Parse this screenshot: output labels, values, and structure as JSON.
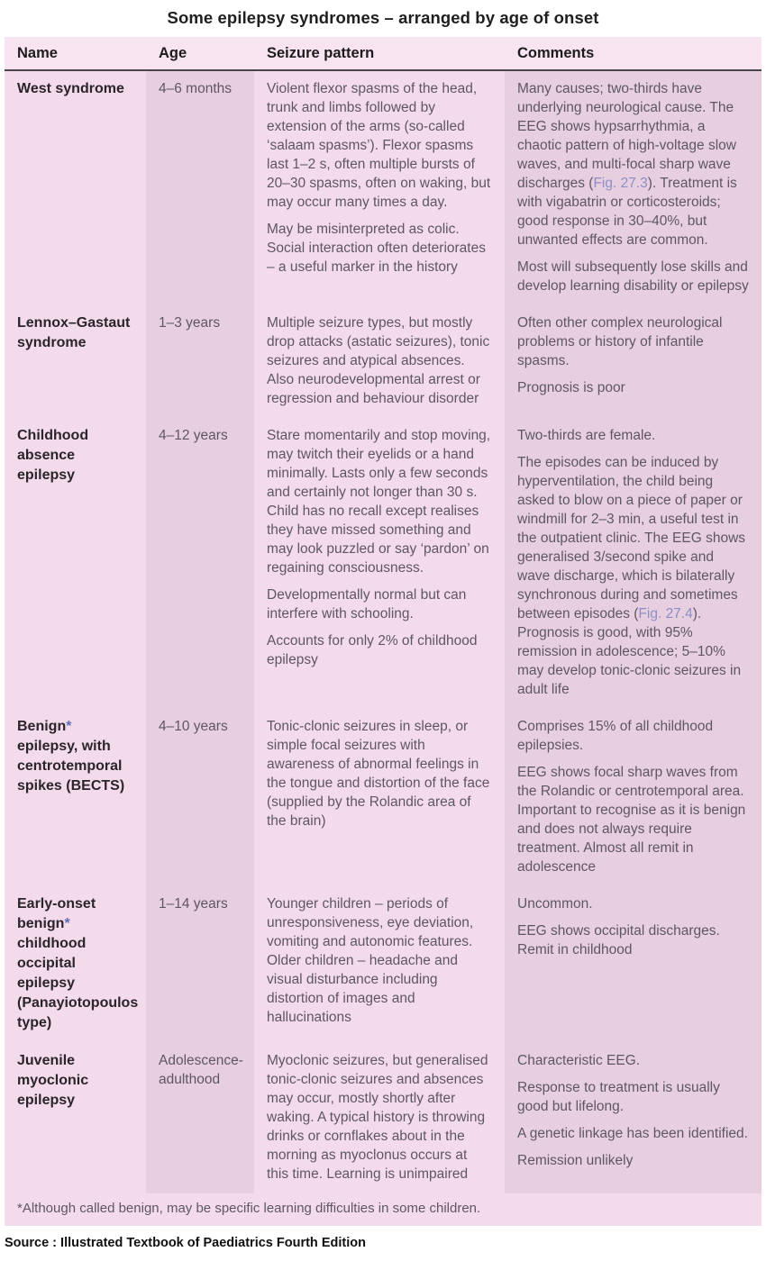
{
  "title": "Some epilepsy syndromes – arranged by age of onset",
  "colors": {
    "light_cell": "#f4dbeb",
    "dark_cell": "#e8cfe0",
    "header_bg": "#f8e3f1",
    "figure_reference": "#8d8ec6",
    "asterisk": "#5d6db6"
  },
  "table": {
    "headers": [
      "Name",
      "Age",
      "Seizure pattern",
      "Comments"
    ],
    "rows": [
      {
        "name": [
          {
            "t": "West syndrome"
          }
        ],
        "age": "4–6 months",
        "seizure": [
          [
            {
              "t": "Violent flexor spasms of the head, trunk and limbs followed by extension of the arms (so-called ‘salaam spasms’). Flexor spasms last 1–2 s, often multiple bursts of 20–30 spasms, often on waking, but may occur many times a day."
            }
          ],
          [
            {
              "t": "May be misinterpreted as colic. Social interaction often deteriorates – a useful marker in the history"
            }
          ]
        ],
        "comments": [
          [
            {
              "t": "Many causes; two-thirds have underlying neurological cause. The EEG shows hypsarrhythmia, a chaotic pattern of high-voltage slow waves, and multi-focal sharp wave discharges ("
            },
            {
              "t": "Fig. 27.3",
              "s": "fig"
            },
            {
              "t": "). Treatment is with vigabatrin or corticosteroids; good response in 30–40%, but unwanted effects are common."
            }
          ],
          [
            {
              "t": "Most will subsequently lose skills and develop learning disability or epilepsy"
            }
          ]
        ]
      },
      {
        "name": [
          {
            "t": "Lennox–Gastaut syndrome"
          }
        ],
        "age": "1–3 years",
        "seizure": [
          [
            {
              "t": "Multiple seizure types, but mostly drop attacks (astatic seizures), tonic seizures and atypical absences. Also neurodevelopmental arrest or regression and behaviour disorder"
            }
          ]
        ],
        "comments": [
          [
            {
              "t": "Often other complex neurological problems or history of infantile spasms."
            }
          ],
          [
            {
              "t": "Prognosis is poor"
            }
          ]
        ]
      },
      {
        "name": [
          {
            "t": "Childhood absence epilepsy"
          }
        ],
        "age": "4–12 years",
        "seizure": [
          [
            {
              "t": "Stare momentarily and stop moving, may twitch their eyelids or a hand minimally. Lasts only a few seconds and certainly not longer than 30 s. Child has no recall except realises they have missed something and may look puzzled or say ‘pardon’ on regaining consciousness."
            }
          ],
          [
            {
              "t": "Developmentally normal but can interfere with schooling."
            }
          ],
          [
            {
              "t": "Accounts for only 2% of childhood epilepsy"
            }
          ]
        ],
        "comments": [
          [
            {
              "t": "Two-thirds are female."
            }
          ],
          [
            {
              "t": "The episodes can be induced by hyperventilation, the child being asked to blow on a piece of paper or windmill for 2–3 min, a useful test in the outpatient clinic. The EEG shows generalised 3/second spike and wave discharge, which is bilaterally synchronous during and sometimes between episodes ("
            },
            {
              "t": "Fig. 27.4",
              "s": "fig"
            },
            {
              "t": "). Prognosis is good, with 95% remission in adolescence; 5–10% may develop tonic-clonic seizures in adult life"
            }
          ]
        ]
      },
      {
        "name": [
          {
            "t": "Benign"
          },
          {
            "t": "*",
            "s": "asterisk"
          },
          {
            "t": " epilepsy, with centrotemporal spikes (BECTS)"
          }
        ],
        "age": "4–10 years",
        "seizure": [
          [
            {
              "t": "Tonic-clonic seizures in sleep, or simple focal seizures with awareness of abnormal feelings in the tongue and distortion of the face (supplied by the Rolandic area of the brain)"
            }
          ]
        ],
        "comments": [
          [
            {
              "t": "Comprises 15% of all childhood epilepsies."
            }
          ],
          [
            {
              "t": "EEG shows focal sharp waves from the Rolandic or centrotemporal area. Important to recognise as it is benign and does not always require treatment. Almost all remit in adolescence"
            }
          ]
        ]
      },
      {
        "name": [
          {
            "t": "Early-onset benign"
          },
          {
            "t": "*",
            "s": "asterisk"
          },
          {
            "t": " childhood occipital epilepsy (Panayiotopoulos type)"
          }
        ],
        "age": "1–14 years",
        "seizure": [
          [
            {
              "t": "Younger children – periods of unresponsiveness, eye deviation, vomiting and autonomic features. Older children – headache and visual disturbance including distortion of images and hallucinations"
            }
          ]
        ],
        "comments": [
          [
            {
              "t": "Uncommon."
            }
          ],
          [
            {
              "t": "EEG shows occipital discharges. Remit in childhood"
            }
          ]
        ]
      },
      {
        "name": [
          {
            "t": "Juvenile myoclonic epilepsy"
          }
        ],
        "age": "Adolescence-adulthood",
        "seizure": [
          [
            {
              "t": "Myoclonic seizures, but generalised tonic-clonic seizures and absences may occur, mostly shortly after waking. A typical history is throwing drinks or cornflakes about in the morning as myoclonus occurs at this time. Learning is unimpaired"
            }
          ]
        ],
        "comments": [
          [
            {
              "t": "Characteristic EEG."
            }
          ],
          [
            {
              "t": "Response to treatment is usually good but lifelong."
            }
          ],
          [
            {
              "t": "A genetic linkage has been identified."
            }
          ],
          [
            {
              "t": "Remission unlikely"
            }
          ]
        ]
      }
    ],
    "footnote": "*Although called benign, may be specific learning difficulties in some children."
  },
  "source": "Source : Illustrated Textbook of Paediatrics Fourth Edition"
}
